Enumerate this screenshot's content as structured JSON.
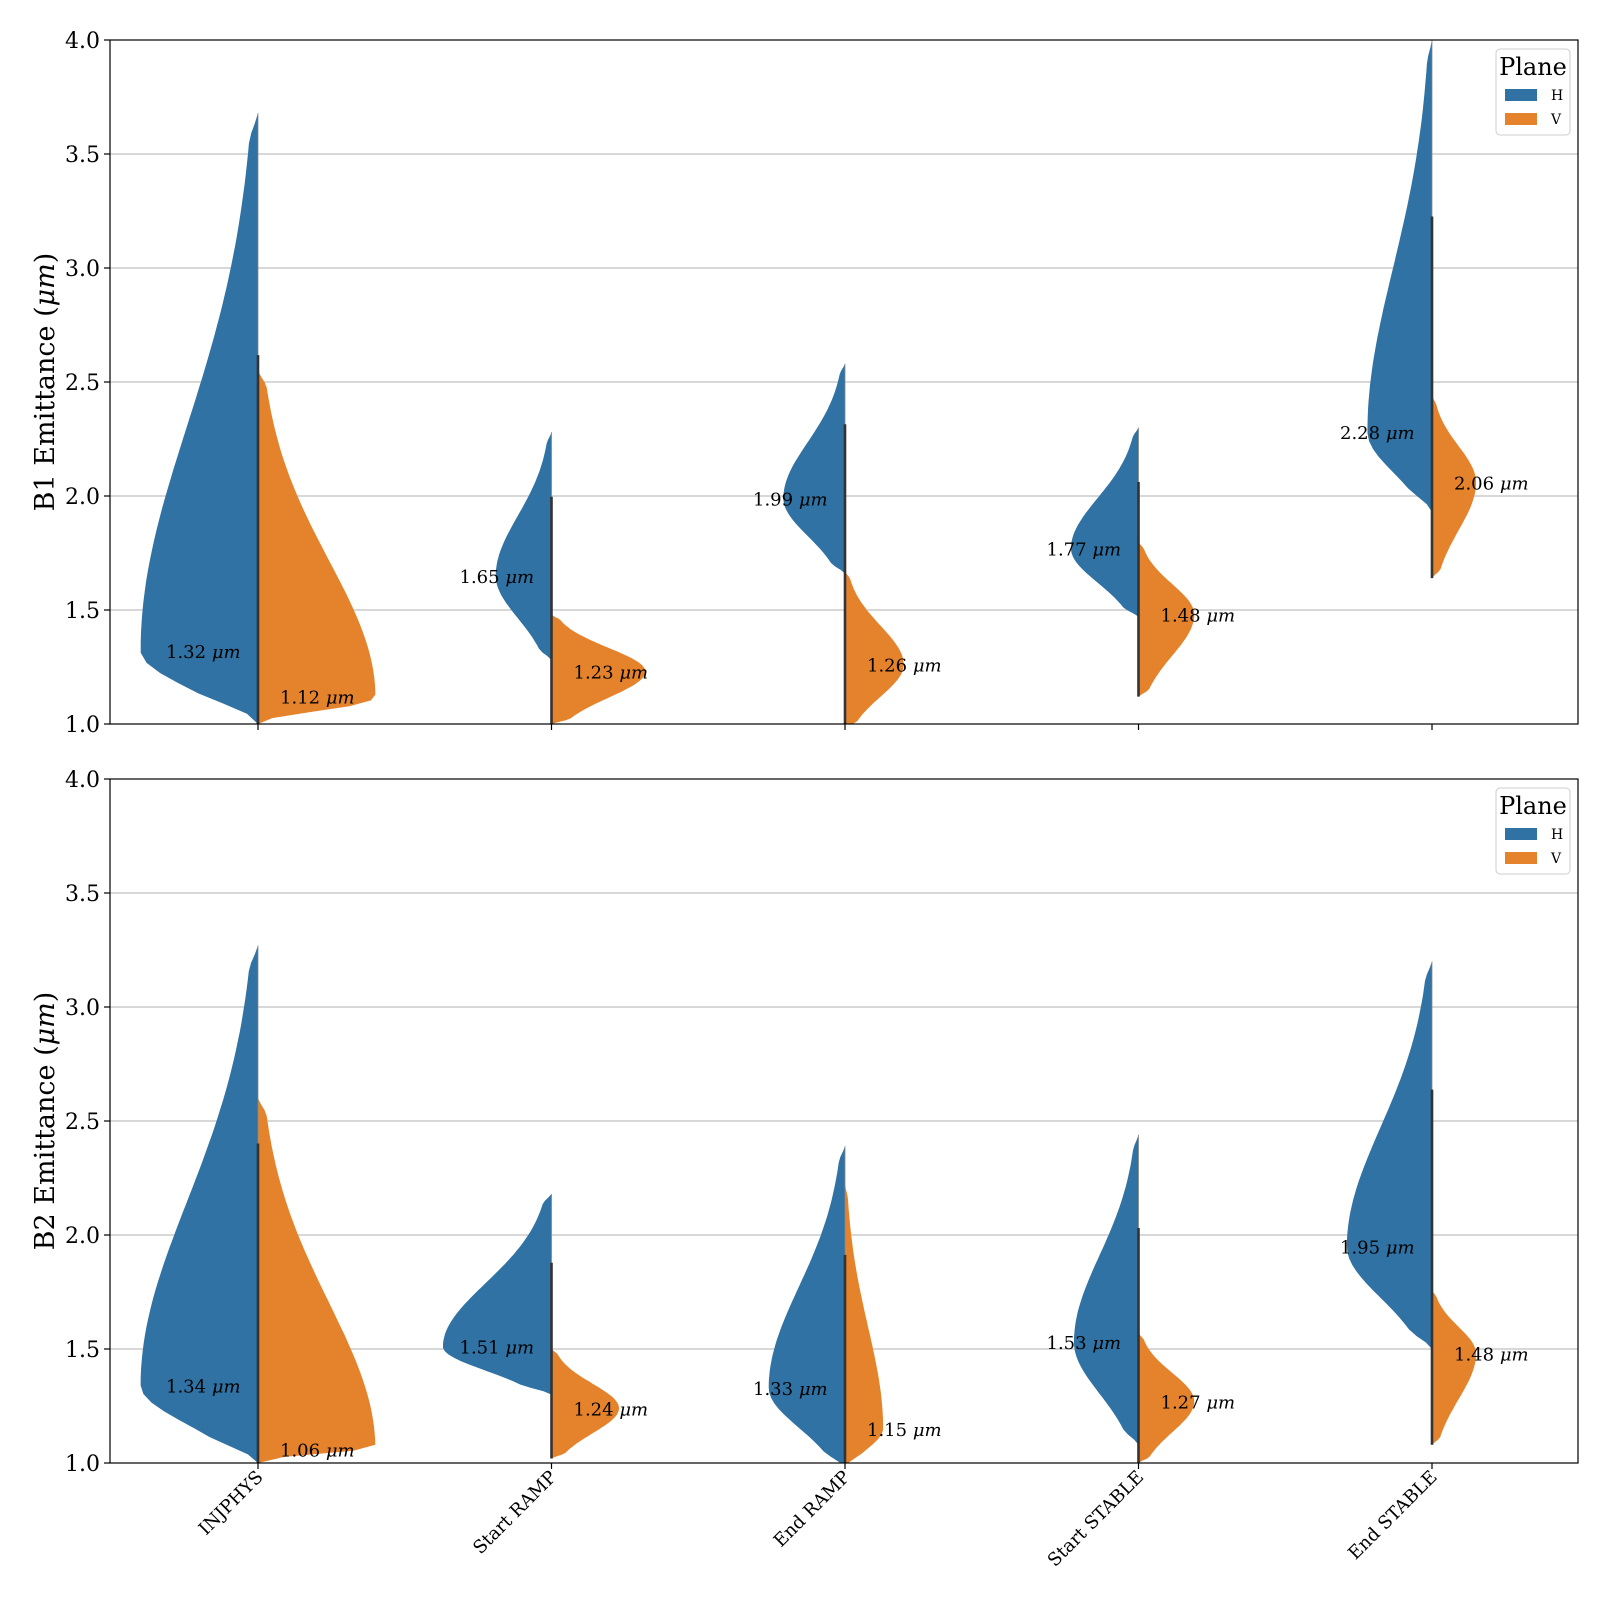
{
  "colors": {
    "H": "#2f72a3",
    "V": "#e5832c",
    "grid": "#b0b0b0",
    "center": "#333333"
  },
  "chart_data": [
    {
      "type": "violin",
      "ylabel": "B1 Emittance (μm)",
      "ylabel_prefix": "B1 Emittance (",
      "ylabel_unit": "μm",
      "ylabel_suffix": ")",
      "ylim": [
        1.0,
        4.0
      ],
      "yticks": [
        "1.0",
        "1.5",
        "2.0",
        "2.5",
        "3.0",
        "3.5",
        "4.0"
      ],
      "grid": true,
      "legend": {
        "title": "Plane",
        "items": [
          "H",
          "V"
        ],
        "position": "top-right"
      },
      "categories": [
        "INJPHYS",
        "Start RAMP",
        "End RAMP",
        "Start STABLE",
        "End STABLE"
      ],
      "series": [
        {
          "name": "H",
          "medians": [
            1.32,
            1.65,
            1.99,
            1.77,
            2.28
          ],
          "mins": [
            1.0,
            1.28,
            1.66,
            1.47,
            1.93
          ],
          "maxs": [
            3.68,
            2.28,
            2.58,
            2.3,
            4.0
          ],
          "widths": [
            0.4,
            0.19,
            0.21,
            0.23,
            0.22
          ]
        },
        {
          "name": "V",
          "medians": [
            1.12,
            1.23,
            1.26,
            1.48,
            2.06
          ],
          "mins": [
            1.0,
            1.0,
            0.98,
            1.12,
            1.64
          ],
          "maxs": [
            2.55,
            1.48,
            1.67,
            1.8,
            2.44
          ],
          "widths": [
            0.4,
            0.32,
            0.2,
            0.19,
            0.15
          ]
        }
      ],
      "annotations": {
        "H": [
          "1.32",
          "1.65",
          "1.99",
          "1.77",
          "2.28"
        ],
        "V": [
          "1.12",
          "1.23",
          "1.26",
          "1.48",
          "2.06"
        ],
        "unit": "μm"
      }
    },
    {
      "type": "violin",
      "ylabel": "B2 Emittance (μm)",
      "ylabel_prefix": "B2 Emittance (",
      "ylabel_unit": "μm",
      "ylabel_suffix": ")",
      "ylim": [
        1.0,
        4.0
      ],
      "yticks": [
        "1.0",
        "1.5",
        "2.0",
        "2.5",
        "3.0",
        "3.5",
        "4.0"
      ],
      "grid": true,
      "legend": {
        "title": "Plane",
        "items": [
          "H",
          "V"
        ],
        "position": "top-right"
      },
      "categories": [
        "INJPHYS",
        "Start RAMP",
        "End RAMP",
        "Start STABLE",
        "End STABLE"
      ],
      "series": [
        {
          "name": "H",
          "medians": [
            1.34,
            1.51,
            1.33,
            1.53,
            1.95
          ],
          "mins": [
            1.0,
            1.3,
            0.98,
            1.08,
            1.5
          ],
          "maxs": [
            3.27,
            2.18,
            2.39,
            2.44,
            3.2
          ],
          "widths": [
            0.4,
            0.37,
            0.26,
            0.22,
            0.29
          ]
        },
        {
          "name": "V",
          "medians": [
            1.06,
            1.24,
            1.15,
            1.27,
            1.48
          ],
          "mins": [
            1.0,
            1.02,
            0.98,
            1.0,
            1.08
          ],
          "maxs": [
            2.6,
            1.5,
            2.22,
            1.57,
            1.76
          ],
          "widths": [
            0.4,
            0.23,
            0.13,
            0.19,
            0.15
          ]
        }
      ],
      "annotations": {
        "H": [
          "1.34",
          "1.51",
          "1.33",
          "1.53",
          "1.95"
        ],
        "V": [
          "1.06",
          "1.24",
          "1.15",
          "1.27",
          "1.48"
        ],
        "unit": "μm"
      }
    }
  ]
}
